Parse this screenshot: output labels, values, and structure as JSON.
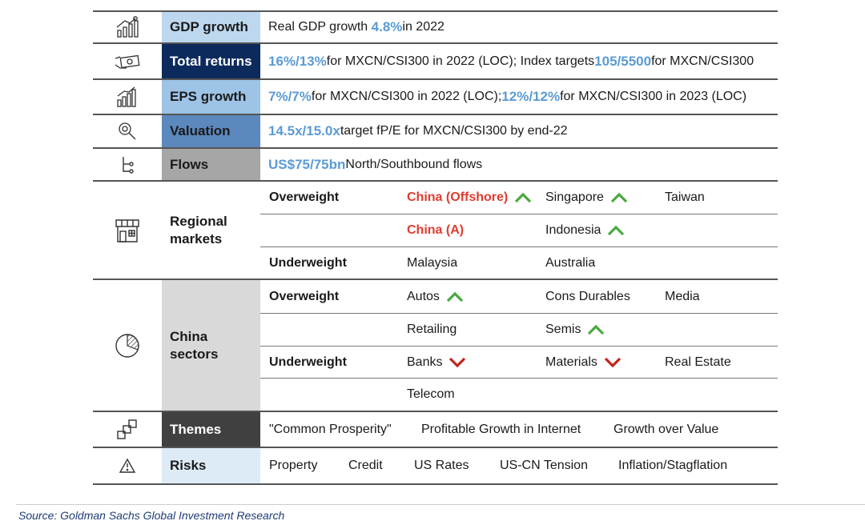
{
  "rows": {
    "gdp": {
      "label": "GDP growth",
      "pre": "Real GDP growth ",
      "hl": "4.8%",
      "post": " in 2022"
    },
    "returns": {
      "label": "Total returns",
      "hl1": "16%/13%",
      "mid": " for MXCN/CSI300 in 2022 (LOC); Index targets ",
      "hl2": "105/5500",
      "post": " for MXCN/CSI300"
    },
    "eps": {
      "label": "EPS growth",
      "hl1": "7%/7%",
      "mid": " for MXCN/CSI300 in 2022 (LOC); ",
      "hl2": "12%/12%",
      "post": " for MXCN/CSI300 in 2023 (LOC)"
    },
    "valuation": {
      "label": "Valuation",
      "hl": "14.5x/15.0x",
      "post": " target fP/E for MXCN/CSI300 by end-22"
    },
    "flows": {
      "label": "Flows",
      "hl": "US$75/75bn",
      "post": " North/Southbound flows"
    },
    "regional": {
      "label_line1": "Regional",
      "label_line2": "markets",
      "overweight": "Overweight",
      "underweight": "Underweight",
      "ow1": [
        "China (Offshore)",
        "Singapore",
        "Taiwan"
      ],
      "ow2": [
        "China (A)",
        "Indonesia"
      ],
      "uw1": [
        "Malaysia",
        "Australia"
      ]
    },
    "sectors": {
      "label_line1": "China",
      "label_line2": "sectors",
      "overweight": "Overweight",
      "underweight": "Underweight",
      "ow1": [
        "Autos",
        "Cons Durables",
        "Media"
      ],
      "ow2": [
        "Retailing",
        "Semis"
      ],
      "uw1": [
        "Banks",
        "Materials",
        "Real Estate"
      ],
      "uw2": [
        "Telecom"
      ]
    },
    "themes": {
      "label": "Themes",
      "items": [
        "\"Common Prosperity\"",
        "Profitable Growth in Internet",
        "Growth over Value"
      ]
    },
    "risks": {
      "label": "Risks",
      "items": [
        "Property",
        "Credit",
        "US Rates",
        "US-CN Tension",
        "Inflation/Stagflation"
      ]
    }
  },
  "source": "Source: Goldman Sachs Global Investment Research",
  "colors": {
    "gdp_bg": "#bdd7ee",
    "returns_bg": "#0d2a5c",
    "eps_bg": "#9dc3e6",
    "valuation_bg": "#5b88bd",
    "flows_bg": "#a6a6a6",
    "sectors_bg": "#d9d9d9",
    "themes_bg": "#404040",
    "risks_bg": "#ddebf7",
    "highlight": "#5b9bd5",
    "up_arrow": "#4aa83f",
    "down_arrow": "#c0261c",
    "red_text": "#e03c31"
  }
}
